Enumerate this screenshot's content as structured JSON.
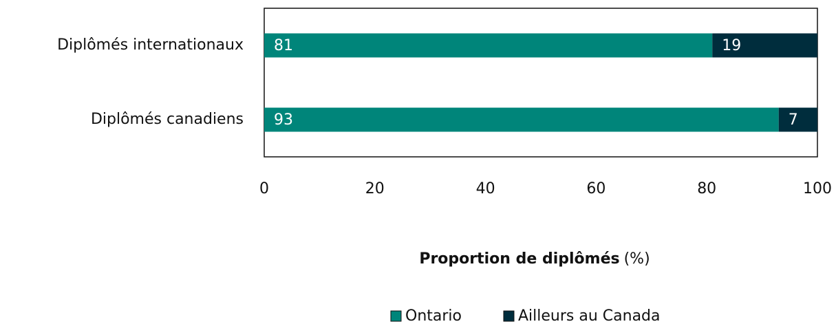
{
  "chart_data": {
    "type": "stacked_barh",
    "categories": [
      "Diplômés internationaux",
      "Diplômés canadiens"
    ],
    "series": [
      {
        "name": "Ontario",
        "color": "#00857a",
        "values": [
          81,
          93
        ]
      },
      {
        "name": "Ailleurs au Canada",
        "color": "#002d3d",
        "values": [
          19,
          7
        ]
      }
    ],
    "xlabel": "Proportion de diplômés",
    "xlabel_unit": "(%)",
    "xlim": [
      0,
      100
    ],
    "xticks": [
      0,
      20,
      40,
      60,
      80,
      100
    ],
    "grid": false,
    "legend": "bottom"
  }
}
